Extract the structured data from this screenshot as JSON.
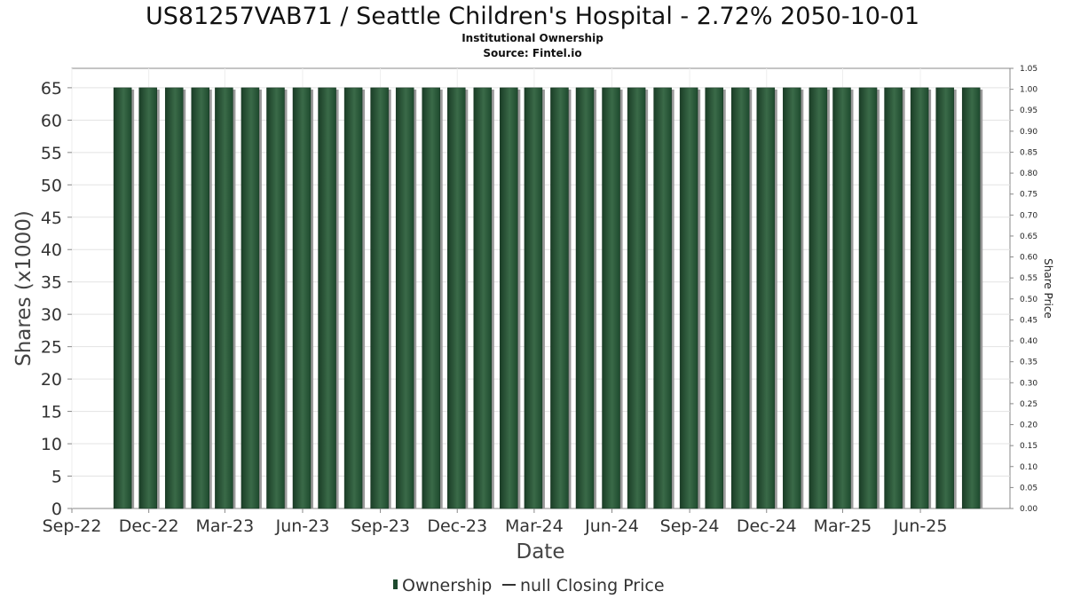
{
  "chart_data": {
    "type": "bar",
    "title": "US81257VAB71 / Seattle Children's Hospital - 2.72% 2050-10-01",
    "subtitle": "Institutional Ownership",
    "source": "Source: Fintel.io",
    "xlabel": "Date",
    "ylabel": "Shares (x1000)",
    "ylabel_right": "Share Price",
    "x_ticks": [
      "Sep-22",
      "Dec-22",
      "Mar-23",
      "Jun-23",
      "Sep-23",
      "Dec-23",
      "Mar-24",
      "Jun-24",
      "Sep-24",
      "Dec-24",
      "Mar-25",
      "Jun-25"
    ],
    "y_ticks": [
      "0",
      "5",
      "10",
      "15",
      "20",
      "25",
      "30",
      "35",
      "40",
      "45",
      "50",
      "55",
      "60",
      "65"
    ],
    "y_ticks_right": [
      "0.00",
      "0.05",
      "0.10",
      "0.15",
      "0.20",
      "0.25",
      "0.30",
      "0.35",
      "0.40",
      "0.45",
      "0.50",
      "0.55",
      "0.60",
      "0.65",
      "0.70",
      "0.75",
      "0.80",
      "0.85",
      "0.90",
      "0.95",
      "1.00",
      "1.05"
    ],
    "ylim": [
      0,
      68
    ],
    "ylim_right": [
      0,
      1.05
    ],
    "x_range": [
      "2022-09-01",
      "2025-09-15"
    ],
    "grid": true,
    "legend_position": "bottom",
    "series": [
      {
        "name": "Ownership",
        "color": "#1e4a2e",
        "points": [
          {
            "x": "2022-10-31",
            "y": 65
          },
          {
            "x": "2022-11-30",
            "y": 65
          },
          {
            "x": "2022-12-31",
            "y": 65
          },
          {
            "x": "2023-01-31",
            "y": 65
          },
          {
            "x": "2023-02-28",
            "y": 65
          },
          {
            "x": "2023-03-31",
            "y": 65
          },
          {
            "x": "2023-04-30",
            "y": 65
          },
          {
            "x": "2023-05-31",
            "y": 65
          },
          {
            "x": "2023-06-30",
            "y": 65
          },
          {
            "x": "2023-07-31",
            "y": 65
          },
          {
            "x": "2023-08-31",
            "y": 65
          },
          {
            "x": "2023-09-30",
            "y": 65
          },
          {
            "x": "2023-10-31",
            "y": 65
          },
          {
            "x": "2023-11-30",
            "y": 65
          },
          {
            "x": "2023-12-31",
            "y": 65
          },
          {
            "x": "2024-01-31",
            "y": 65
          },
          {
            "x": "2024-02-29",
            "y": 65
          },
          {
            "x": "2024-03-31",
            "y": 65
          },
          {
            "x": "2024-04-30",
            "y": 65
          },
          {
            "x": "2024-05-31",
            "y": 65
          },
          {
            "x": "2024-06-30",
            "y": 65
          },
          {
            "x": "2024-07-31",
            "y": 65
          },
          {
            "x": "2024-08-31",
            "y": 65
          },
          {
            "x": "2024-09-30",
            "y": 65
          },
          {
            "x": "2024-10-31",
            "y": 65
          },
          {
            "x": "2024-11-30",
            "y": 65
          },
          {
            "x": "2024-12-31",
            "y": 65
          },
          {
            "x": "2025-01-31",
            "y": 65
          },
          {
            "x": "2025-02-28",
            "y": 65
          },
          {
            "x": "2025-03-31",
            "y": 65
          },
          {
            "x": "2025-04-30",
            "y": 65
          },
          {
            "x": "2025-05-31",
            "y": 65
          },
          {
            "x": "2025-06-30",
            "y": 65
          },
          {
            "x": "2025-07-31",
            "y": 65
          }
        ]
      },
      {
        "name": "null Closing Price",
        "color": "#333333",
        "points": []
      }
    ]
  },
  "legend": {
    "ownership": "Ownership",
    "price": "null Closing Price"
  }
}
